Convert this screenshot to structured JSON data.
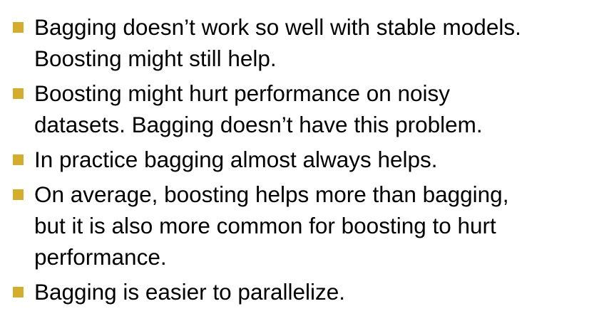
{
  "bullet_color": "#D4AE2B",
  "bullet_icon": "square-bullet-icon",
  "bullets": [
    {
      "lines": [
        "Bagging doesn’t work so well with stable models.",
        "Boosting might still help."
      ]
    },
    {
      "lines": [
        "Boosting might hurt performance on noisy",
        "datasets. Bagging doesn’t have this problem."
      ]
    },
    {
      "lines": [
        "In practice bagging almost always helps."
      ]
    },
    {
      "lines": [
        "On average, boosting helps more than bagging,",
        "but it is also more common for boosting to hurt",
        "performance."
      ]
    },
    {
      "lines": [
        "Bagging is easier to parallelize."
      ]
    }
  ]
}
